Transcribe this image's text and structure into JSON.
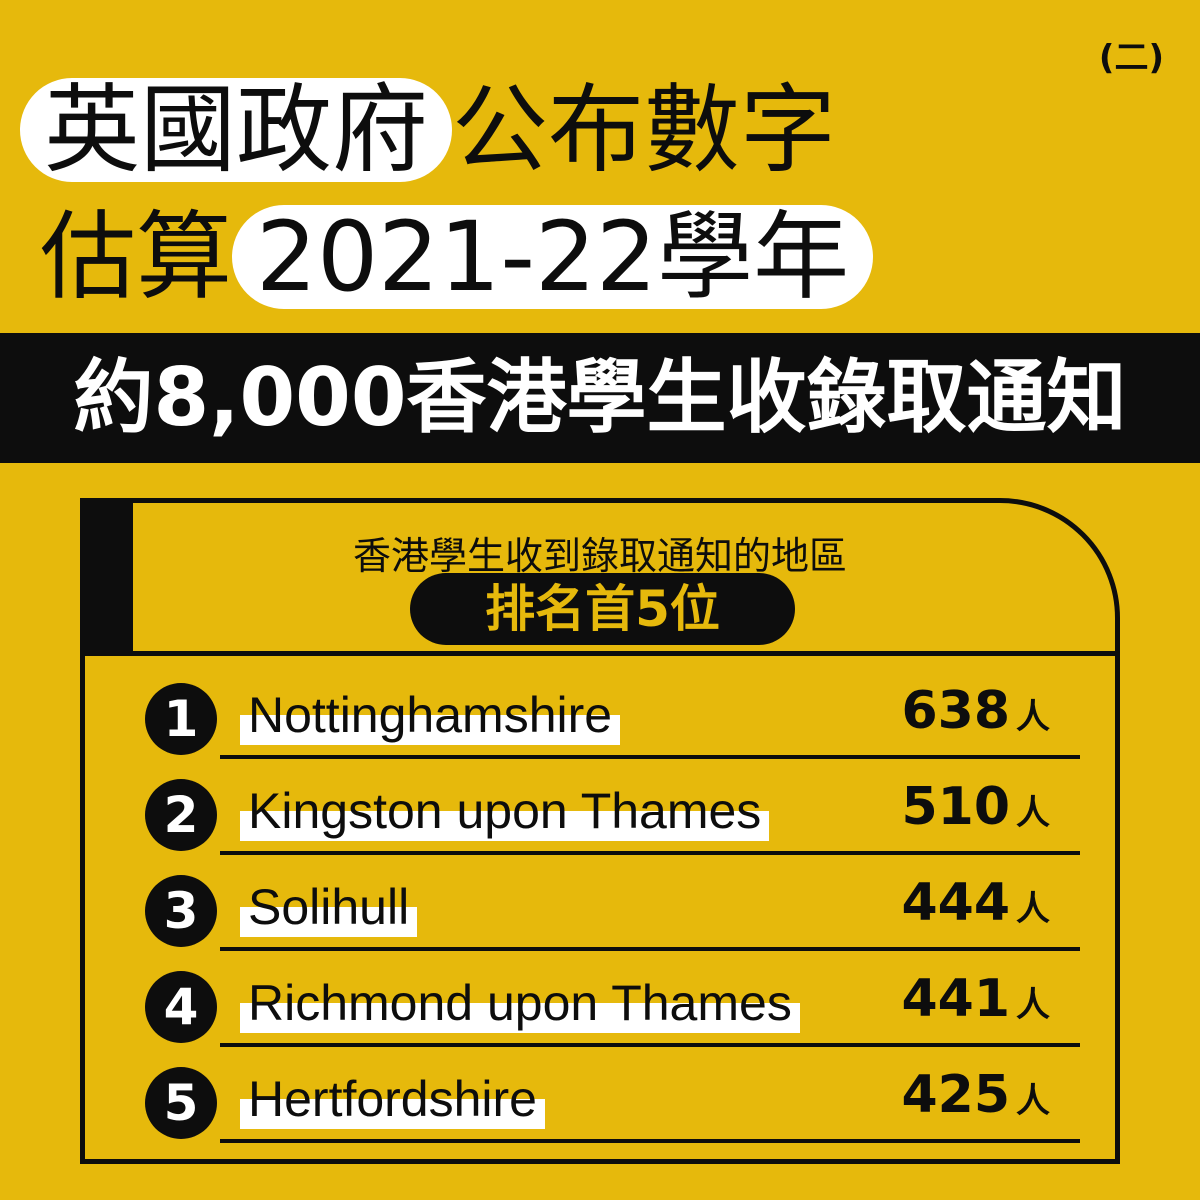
{
  "badge": "(二)",
  "title": {
    "line1_highlight": "英國政府",
    "line1_rest": "公布數字",
    "line2_start": "估算",
    "line2_highlight": "2021-22學年"
  },
  "headline": "約8,000香港學生收錄取通知",
  "panel": {
    "subtitle": "香港學生收到錄取通知的地區",
    "rank_label": "排名首5位"
  },
  "unit": "人",
  "rows": [
    {
      "rank": "1",
      "name": "Nottinghamshire",
      "value": "638"
    },
    {
      "rank": "2",
      "name": "Kingston upon Thames",
      "value": "510"
    },
    {
      "rank": "3",
      "name": "Solihull",
      "value": "444"
    },
    {
      "rank": "4",
      "name": "Richmond upon Thames",
      "value": "441"
    },
    {
      "rank": "5",
      "name": "Hertfordshire",
      "value": "425"
    }
  ],
  "colors": {
    "background": "#E6B90C",
    "ink": "#0d0d0d",
    "highlight": "#ffffff"
  }
}
